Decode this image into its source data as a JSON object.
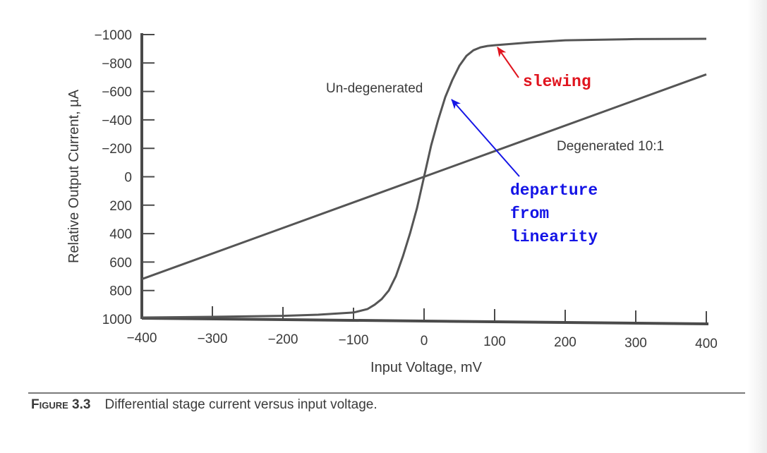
{
  "chart_data": {
    "type": "line",
    "xlabel": "Input Voltage, mV",
    "ylabel": "Relative Output Current, µA",
    "xlim": [
      -400,
      400
    ],
    "ylim": [
      1000,
      -1000
    ],
    "y_axis_inverted": true,
    "x_ticks": [
      "−400",
      "−300",
      "−200",
      "−100",
      "0",
      "100",
      "200",
      "300",
      "400"
    ],
    "x_tick_values": [
      -400,
      -300,
      -200,
      -100,
      0,
      100,
      200,
      300,
      400
    ],
    "y_ticks": [
      "−1000",
      "−800",
      "−600",
      "−400",
      "−200",
      "0",
      "200",
      "400",
      "600",
      "800",
      "1000"
    ],
    "y_tick_values": [
      -1000,
      -800,
      -600,
      -400,
      -200,
      0,
      200,
      400,
      600,
      800,
      1000
    ],
    "grid": false,
    "series": [
      {
        "name": "Un-degenerated",
        "x": [
          -400,
          -300,
          -200,
          -150,
          -100,
          -80,
          -70,
          -60,
          -50,
          -40,
          -30,
          -20,
          -10,
          0,
          10,
          20,
          30,
          40,
          50,
          60,
          70,
          80,
          90,
          100,
          150,
          200,
          300,
          400
        ],
        "y": [
          990,
          985,
          978,
          970,
          955,
          930,
          900,
          860,
          800,
          700,
          560,
          400,
          220,
          0,
          -220,
          -400,
          -560,
          -680,
          -780,
          -850,
          -890,
          -910,
          -920,
          -925,
          -945,
          -960,
          -968,
          -970
        ]
      },
      {
        "name": "Degenerated 10:1",
        "x": [
          -400,
          400
        ],
        "y": [
          720,
          -720
        ]
      }
    ],
    "annotations": [
      {
        "text": "slewing",
        "color": "#e0141e",
        "points_to": {
          "x": 105,
          "y": -900
        }
      },
      {
        "text": "departure from linearity",
        "lines": [
          "departure",
          "from",
          "linearity"
        ],
        "color": "#1414e6",
        "points_to": {
          "x": 40,
          "y": -550
        }
      }
    ]
  },
  "caption": {
    "figure_label": "Figure 3.3",
    "text": "Differential stage current versus input voltage."
  }
}
